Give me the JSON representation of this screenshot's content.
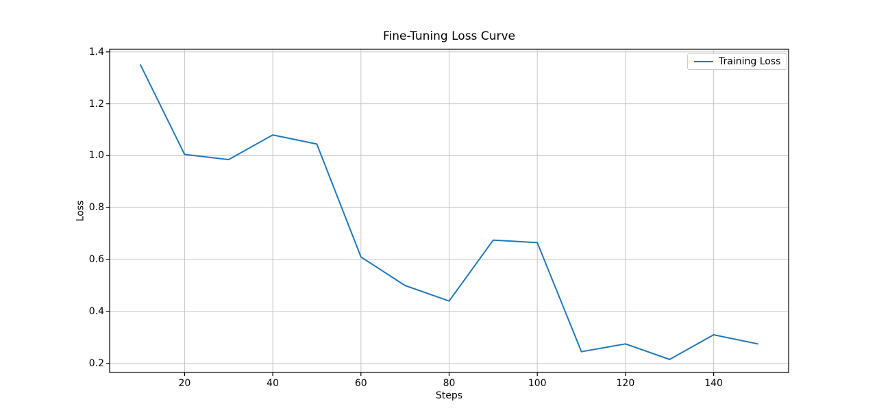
{
  "title": "Fine-Tuning Loss Curve",
  "xlabel": "Steps",
  "ylabel": "Loss",
  "legend": {
    "label": "Training Loss",
    "line_color": "#1f77b4",
    "position": "upper right"
  },
  "colors": {
    "line": "#1f77b4",
    "grid": "#c6c6c6",
    "spine": "#000000",
    "background": "#ffffff",
    "text": "#000000"
  },
  "chart_data": {
    "type": "line",
    "title": "Fine-Tuning Loss Curve",
    "xlabel": "Steps",
    "ylabel": "Loss",
    "grid": true,
    "legend_position": "upper right",
    "xlim": [
      3,
      157
    ],
    "ylim": [
      0.165,
      1.41
    ],
    "xticks": [
      20,
      40,
      60,
      80,
      100,
      120,
      140
    ],
    "xtick_labels": [
      "20",
      "40",
      "60",
      "80",
      "100",
      "120",
      "140"
    ],
    "yticks": [
      0.2,
      0.4,
      0.6,
      0.8,
      1.0,
      1.2,
      1.4
    ],
    "ytick_labels": [
      "0.2",
      "0.4",
      "0.6",
      "0.8",
      "1.0",
      "1.2",
      "1.4"
    ],
    "series": [
      {
        "name": "Training Loss",
        "color": "#1f77b4",
        "x": [
          10,
          20,
          30,
          40,
          50,
          60,
          70,
          80,
          90,
          100,
          110,
          120,
          130,
          140,
          150
        ],
        "y": [
          1.35,
          1.005,
          0.985,
          1.08,
          1.045,
          0.61,
          0.5,
          0.44,
          0.675,
          0.665,
          0.245,
          0.275,
          0.215,
          0.31,
          0.275
        ]
      }
    ]
  }
}
